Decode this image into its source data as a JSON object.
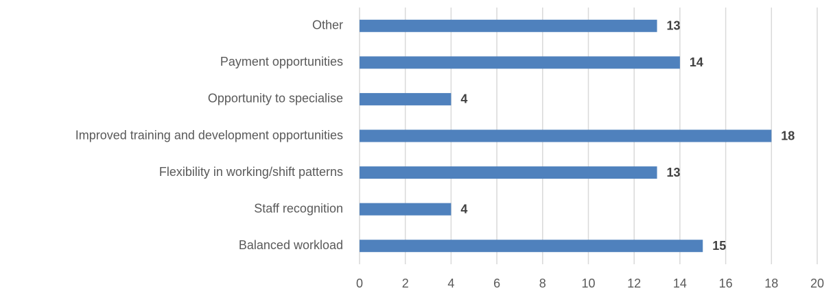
{
  "chart_data": {
    "type": "bar",
    "orientation": "horizontal",
    "categories": [
      "Other",
      "Payment opportunities",
      "Opportunity to specialise",
      "Improved training and development opportunities",
      "Flexibility in working/shift patterns",
      "Staff recognition",
      "Balanced workload"
    ],
    "values": [
      13,
      14,
      4,
      18,
      13,
      4,
      15
    ],
    "color": "#4f81bd",
    "xlim": [
      0,
      20
    ],
    "xticks": [
      0,
      2,
      4,
      6,
      8,
      10,
      12,
      14,
      16,
      18,
      20
    ],
    "grid": true
  }
}
